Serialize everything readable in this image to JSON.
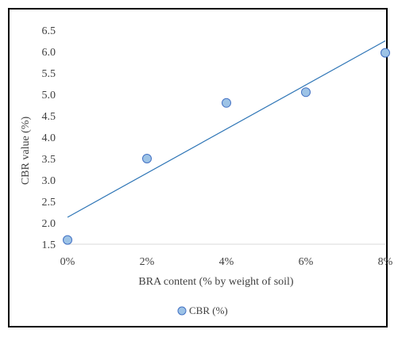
{
  "chart_data": {
    "type": "scatter",
    "xlabel": "BRA content (% by weight of soil)",
    "ylabel": "CBR value (%)",
    "x_ticks": [
      "0%",
      "2%",
      "4%",
      "6%",
      "8%"
    ],
    "y_ticks": [
      "1.5",
      "2.0",
      "2.5",
      "3.0",
      "3.5",
      "4.0",
      "4.5",
      "5.0",
      "5.5",
      "6.0",
      "6.5"
    ],
    "xlim": [
      0,
      8
    ],
    "ylim": [
      1.5,
      6.5
    ],
    "grid": false,
    "legend_position": "bottom",
    "series": [
      {
        "name": "CBR (%)",
        "x": [
          0,
          2,
          4,
          6,
          8
        ],
        "y": [
          1.6,
          3.5,
          4.8,
          5.05,
          5.97
        ],
        "marker_color": "#9dc3e6",
        "marker_edge_color": "#4472c4"
      }
    ],
    "trendline": {
      "type": "linear",
      "x": [
        0,
        8
      ],
      "y": [
        2.13,
        6.25
      ],
      "color": "#2e75b6"
    }
  }
}
